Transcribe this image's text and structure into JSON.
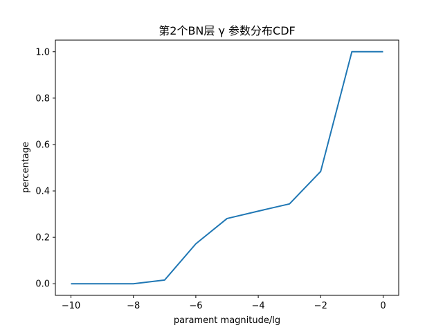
{
  "chart_data": {
    "type": "line",
    "title": "第2个BN层 γ 参数分布CDF",
    "xlabel": "parament magnitude/lg",
    "ylabel": "percentage",
    "xlim": [
      -10.5,
      0.5
    ],
    "ylim": [
      -0.05,
      1.05
    ],
    "xticks": [
      -10,
      -8,
      -6,
      -4,
      -2,
      0
    ],
    "xtick_labels": [
      "−10",
      "−8",
      "−6",
      "−4",
      "−2",
      "0"
    ],
    "yticks": [
      0.0,
      0.2,
      0.4,
      0.6,
      0.8,
      1.0
    ],
    "ytick_labels": [
      "0.0",
      "0.2",
      "0.4",
      "0.6",
      "0.8",
      "1.0"
    ],
    "grid": false,
    "series": [
      {
        "color": "#1f77b4",
        "x": [
          -10,
          -9,
          -8,
          -7,
          -6,
          -5,
          -4,
          -3,
          -2,
          -1,
          0
        ],
        "y": [
          0.0,
          0.0,
          0.0,
          0.016,
          0.172,
          0.281,
          0.313,
          0.344,
          0.484,
          1.0,
          1.0
        ]
      }
    ]
  }
}
